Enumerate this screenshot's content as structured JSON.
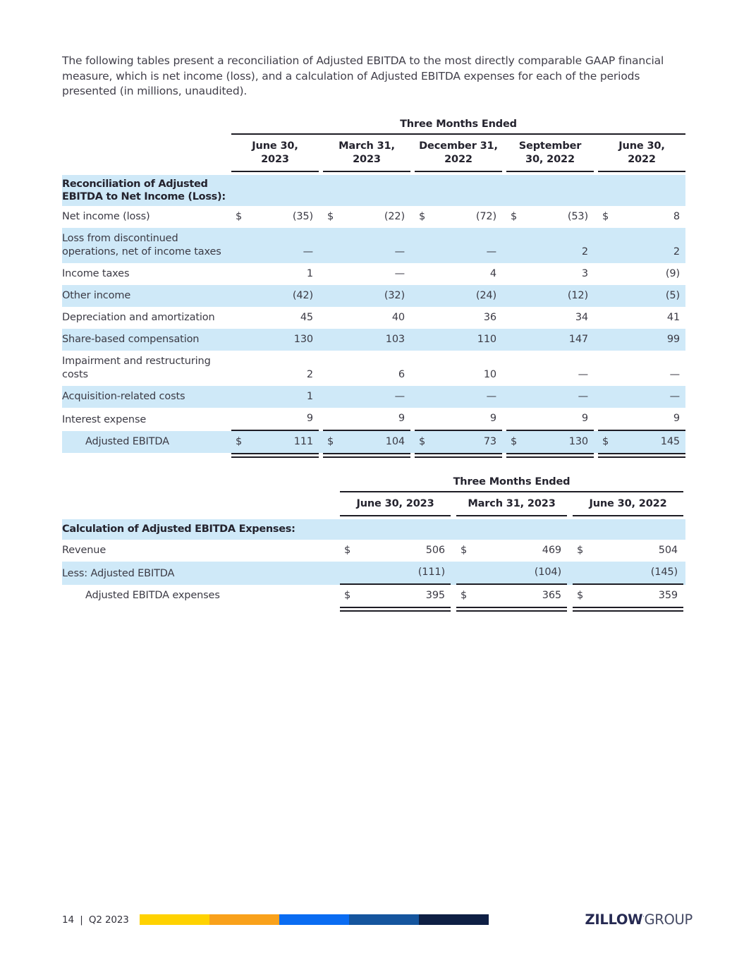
{
  "page": {
    "intro": "The following tables present a reconciliation of Adjusted EBITDA to the most directly comparable GAAP financial measure, which is net income (loss), and a calculation of Adjusted EBITDA expenses for each of the periods presented (in millions, unaudited)."
  },
  "currency": "$",
  "table1": {
    "span_header": "Three Months Ended",
    "section_header": "Reconciliation of Adjusted EBITDA to Net Income (Loss):",
    "columns": [
      {
        "l1": "June 30,",
        "l2": "2023"
      },
      {
        "l1": "March 31,",
        "l2": "2023"
      },
      {
        "l1": "December 31,",
        "l2": "2022"
      },
      {
        "l1": "September",
        "l2": "30, 2022"
      },
      {
        "l1": "June 30,",
        "l2": "2022"
      }
    ],
    "rows": [
      {
        "label": "Net income (loss)",
        "values": [
          "(35)",
          "(22)",
          "(72)",
          "(53)",
          "8"
        ]
      },
      {
        "label": "Loss from discontinued operations, net of income taxes",
        "values": [
          "—",
          "—",
          "—",
          "2",
          "2"
        ]
      },
      {
        "label": "Income taxes",
        "values": [
          "1",
          "—",
          "4",
          "3",
          "(9)"
        ]
      },
      {
        "label": "Other income",
        "values": [
          "(42)",
          "(32)",
          "(24)",
          "(12)",
          "(5)"
        ]
      },
      {
        "label": "Depreciation and amortization",
        "values": [
          "45",
          "40",
          "36",
          "34",
          "41"
        ]
      },
      {
        "label": "Share-based compensation",
        "values": [
          "130",
          "103",
          "110",
          "147",
          "99"
        ]
      },
      {
        "label": "Impairment and restructuring costs",
        "values": [
          "2",
          "6",
          "10",
          "—",
          "—"
        ]
      },
      {
        "label": "Acquisition-related costs",
        "values": [
          "1",
          "—",
          "—",
          "—",
          "—"
        ]
      },
      {
        "label": "Interest expense",
        "values": [
          "9",
          "9",
          "9",
          "9",
          "9"
        ]
      },
      {
        "label": "Adjusted EBITDA",
        "values": [
          "111",
          "104",
          "73",
          "130",
          "145"
        ]
      }
    ]
  },
  "table2": {
    "span_header": "Three Months Ended",
    "section_header": "Calculation of Adjusted EBITDA Expenses:",
    "columns": [
      "June 30, 2023",
      "March 31, 2023",
      "June 30, 2022"
    ],
    "rows": [
      {
        "label": "Revenue",
        "values": [
          "506",
          "469",
          "504"
        ]
      },
      {
        "label": "Less: Adjusted EBITDA",
        "values": [
          "(111)",
          "(104)",
          "(145)"
        ]
      },
      {
        "label": "Adjusted EBITDA expenses",
        "values": [
          "395",
          "365",
          "359"
        ]
      }
    ]
  },
  "footer": {
    "page_number": "14",
    "separator": "|",
    "period": "Q2 2023",
    "bar_colors": [
      "#ffd200",
      "#f9a11b",
      "#0a6cf2",
      "#15559e",
      "#0e1f44"
    ],
    "logo_primary": "ZILLOW",
    "logo_mark": "’",
    "logo_secondary": "GROUP"
  }
}
